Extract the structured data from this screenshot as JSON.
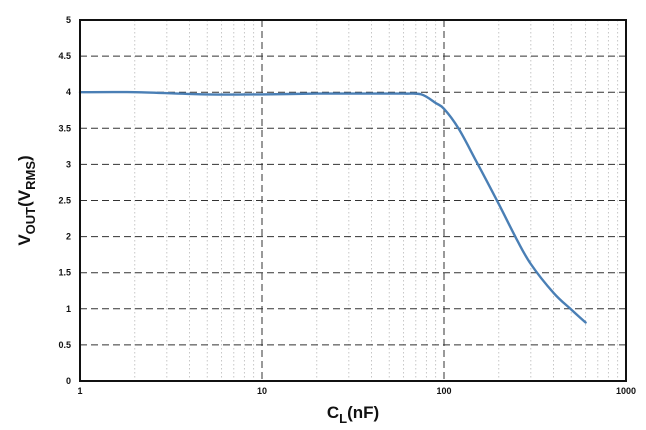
{
  "chart_data": {
    "type": "line",
    "x_scale": "log",
    "xlim": [
      1,
      1000
    ],
    "ylim": [
      0,
      5
    ],
    "grid": true,
    "x_ticks": [
      {
        "value": 1,
        "label": "1"
      },
      {
        "value": 10,
        "label": "10"
      },
      {
        "value": 100,
        "label": "100"
      },
      {
        "value": 1000,
        "label": "1000"
      }
    ],
    "y_ticks": [
      {
        "value": 0,
        "label": "0"
      },
      {
        "value": 0.5,
        "label": "0.5"
      },
      {
        "value": 1,
        "label": "1"
      },
      {
        "value": 1.5,
        "label": "1.5"
      },
      {
        "value": 2,
        "label": "2"
      },
      {
        "value": 2.5,
        "label": "2.5"
      },
      {
        "value": 3,
        "label": "3"
      },
      {
        "value": 3.5,
        "label": "3.5"
      },
      {
        "value": 4,
        "label": "4"
      },
      {
        "value": 4.5,
        "label": "4.5"
      },
      {
        "value": 5,
        "label": "5"
      }
    ],
    "xlabel": {
      "main": "C",
      "sub": "L",
      "unit": "(nF)"
    },
    "ylabel": {
      "main": "V",
      "sub1": "OUT",
      "mid": "(V",
      "sub2": "RMS",
      "end": ")"
    },
    "line_color": "#4a7fb5",
    "series": [
      {
        "x": [
          1,
          2,
          5,
          10,
          20,
          40,
          60,
          75,
          90,
          100,
          120,
          150,
          200,
          250,
          300,
          400,
          500,
          600
        ],
        "y": [
          4.0,
          4.0,
          3.97,
          3.97,
          3.98,
          3.98,
          3.98,
          3.97,
          3.85,
          3.77,
          3.5,
          3.05,
          2.45,
          1.97,
          1.62,
          1.22,
          0.99,
          0.81
        ]
      }
    ]
  }
}
